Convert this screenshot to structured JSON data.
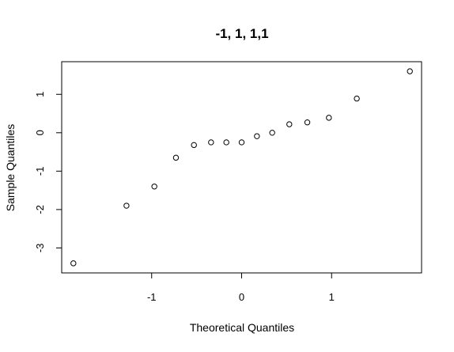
{
  "chart_data": {
    "type": "scatter",
    "title": "-1, 1, 1,1",
    "xlabel": "Theoretical Quantiles",
    "ylabel": "Sample Quantiles",
    "xlim": [
      -2.0,
      2.0
    ],
    "ylim": [
      -3.65,
      1.85
    ],
    "x_ticks": [
      -1,
      0,
      1
    ],
    "x_tick_labels": [
      "-1",
      "0",
      "1"
    ],
    "y_ticks": [
      -3,
      -2,
      -1,
      0,
      1
    ],
    "y_tick_labels": [
      "-3",
      "-2",
      "-1",
      "0",
      "1"
    ],
    "grid": false,
    "legend": "none",
    "marker": "open-circle",
    "points": [
      {
        "x": -1.87,
        "y": -3.4
      },
      {
        "x": -1.28,
        "y": -1.9
      },
      {
        "x": -0.97,
        "y": -1.4
      },
      {
        "x": -0.73,
        "y": -0.65
      },
      {
        "x": -0.53,
        "y": -0.32
      },
      {
        "x": -0.34,
        "y": -0.25
      },
      {
        "x": -0.17,
        "y": -0.25
      },
      {
        "x": 0.0,
        "y": -0.25
      },
      {
        "x": 0.17,
        "y": -0.09
      },
      {
        "x": 0.34,
        "y": 0.0
      },
      {
        "x": 0.53,
        "y": 0.22
      },
      {
        "x": 0.73,
        "y": 0.27
      },
      {
        "x": 0.97,
        "y": 0.39
      },
      {
        "x": 1.28,
        "y": 0.89
      },
      {
        "x": 1.87,
        "y": 1.6
      }
    ]
  }
}
